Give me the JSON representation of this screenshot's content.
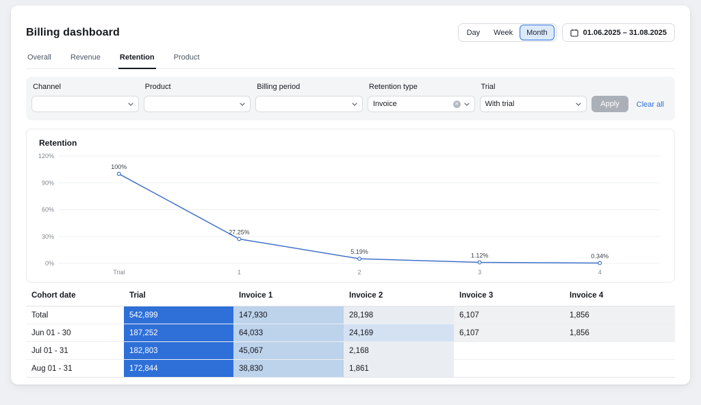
{
  "page": {
    "title": "Billing dashboard"
  },
  "period_toggle": {
    "options": [
      "Day",
      "Week",
      "Month"
    ],
    "selected": "Month"
  },
  "date_range": {
    "label": "01.06.2025 – 31.08.2025",
    "icon": "calendar-icon"
  },
  "tabs": [
    {
      "label": "Overall",
      "active": false
    },
    {
      "label": "Revenue",
      "active": false
    },
    {
      "label": "Retention",
      "active": true
    },
    {
      "label": "Product",
      "active": false
    }
  ],
  "filters": {
    "fields": [
      {
        "label": "Channel",
        "value": "",
        "clearable": false
      },
      {
        "label": "Product",
        "value": "",
        "clearable": false
      },
      {
        "label": "Billing period",
        "value": "",
        "clearable": false
      },
      {
        "label": "Retention type",
        "value": "Invoice",
        "clearable": true
      },
      {
        "label": "Trial",
        "value": "With trial",
        "clearable": false
      }
    ],
    "apply_label": "Apply",
    "clear_all_label": "Clear all"
  },
  "chart_data": {
    "type": "line",
    "title": "Retention",
    "categories": [
      "Trial",
      "1",
      "2",
      "3",
      "4"
    ],
    "values": [
      100,
      27.25,
      5.19,
      1.12,
      0.34
    ],
    "point_labels": [
      "100%",
      "27.25%",
      "5.19%",
      "1.12%",
      "0.34%"
    ],
    "xlabel": "",
    "ylabel": "",
    "ylim": [
      0,
      120
    ],
    "yticks": [
      0,
      30,
      60,
      90,
      120
    ],
    "ytick_labels": [
      "0%",
      "30%",
      "60%",
      "90%",
      "120%"
    ],
    "grid": true,
    "legend": false,
    "line_color": "#3e70c9",
    "marker_fill": "#ffffff"
  },
  "table": {
    "columns": [
      "Cohort date",
      "Trial",
      "Invoice 1",
      "Invoice 2",
      "Invoice 3",
      "Invoice 4"
    ],
    "rows": [
      {
        "label": "Total",
        "cells": [
          {
            "value": "542,899",
            "bg": "#2e6fd8",
            "fg": "#ffffff"
          },
          {
            "value": "147,930",
            "bg": "#bdd2eb",
            "fg": "#15181d"
          },
          {
            "value": "28,198",
            "bg": "#e9ecf0",
            "fg": "#15181d"
          },
          {
            "value": "6,107",
            "bg": "#f0f1f3",
            "fg": "#15181d"
          },
          {
            "value": "1,856",
            "bg": "#f0f1f3",
            "fg": "#15181d"
          }
        ]
      },
      {
        "label": "Jun 01 - 30",
        "cells": [
          {
            "value": "187,252",
            "bg": "#2e6fd8",
            "fg": "#ffffff"
          },
          {
            "value": "64,033",
            "bg": "#bdd2eb",
            "fg": "#15181d"
          },
          {
            "value": "24,169",
            "bg": "#d3e1f3",
            "fg": "#15181d"
          },
          {
            "value": "6,107",
            "bg": "#f0f1f3",
            "fg": "#15181d"
          },
          {
            "value": "1,856",
            "bg": "#f0f1f3",
            "fg": "#15181d"
          }
        ]
      },
      {
        "label": "Jul 01 - 31",
        "cells": [
          {
            "value": "182,803",
            "bg": "#2e6fd8",
            "fg": "#ffffff"
          },
          {
            "value": "45,067",
            "bg": "#bdd2eb",
            "fg": "#15181d"
          },
          {
            "value": "2,168",
            "bg": "#eaedf1",
            "fg": "#15181d"
          },
          {
            "value": "",
            "bg": "",
            "fg": "#15181d"
          },
          {
            "value": "",
            "bg": "",
            "fg": "#15181d"
          }
        ]
      },
      {
        "label": "Aug 01 - 31",
        "cells": [
          {
            "value": "172,844",
            "bg": "#2e6fd8",
            "fg": "#ffffff"
          },
          {
            "value": "38,830",
            "bg": "#bdd2eb",
            "fg": "#15181d"
          },
          {
            "value": "1,861",
            "bg": "#eaedf1",
            "fg": "#15181d"
          },
          {
            "value": "",
            "bg": "",
            "fg": "#15181d"
          },
          {
            "value": "",
            "bg": "",
            "fg": "#15181d"
          }
        ]
      }
    ]
  },
  "colors": {
    "accent_blue": "#2e6fd8",
    "selected_fill": "#dce9fb",
    "link_blue": "#2f6fdb",
    "grid_line": "#edeff1",
    "axis_text": "#80868d"
  }
}
